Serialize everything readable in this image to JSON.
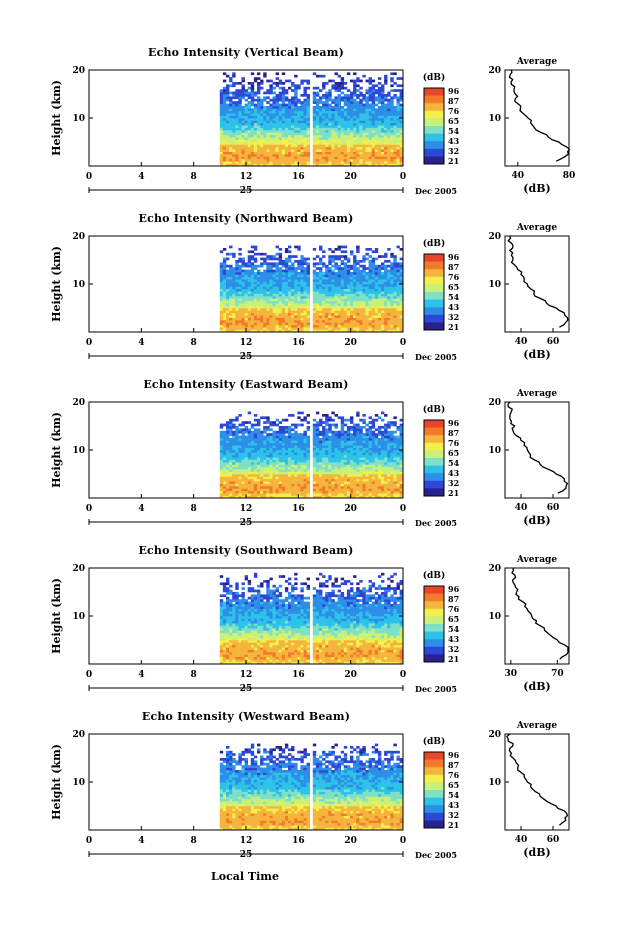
{
  "figure": {
    "xlabel": "Local Time",
    "day_label": "25",
    "date_label": "Dec 2005",
    "ylabel": "Height (km)",
    "unit_label": "(dB)",
    "avg_title": "Average",
    "avg_xlabel": "(dB)"
  },
  "colorscale": {
    "ticks": [
      "96",
      "87",
      "76",
      "65",
      "54",
      "43",
      "32",
      "21"
    ],
    "colors": [
      "#28238c",
      "#2d47d6",
      "#2d8ee8",
      "#2dc3e8",
      "#7fe0c8",
      "#c8f07a",
      "#f2f04a",
      "#f5b43c",
      "#f27a2a",
      "#e8462a"
    ]
  },
  "chart_data": [
    {
      "type": "heatmap",
      "title": "Echo Intensity (Vertical Beam)",
      "xlabel": "Local Time",
      "ylabel": "Height (km)",
      "xlim": [
        0,
        24
      ],
      "ylim": [
        0,
        20
      ],
      "x_ticks": [
        "0",
        "4",
        "8",
        "12",
        "16",
        "20",
        "0"
      ],
      "y_ticks": [
        "10",
        "20"
      ],
      "colorbar_label": "(dB)",
      "colorbar_ticks": [
        96,
        87,
        76,
        65,
        54,
        43,
        32,
        21
      ],
      "data_start_hour": 10,
      "gap_hour": 17,
      "top_height_km": 20,
      "average": {
        "title": "Average",
        "xlabel": "(dB)",
        "x_ticks": [
          "40",
          "80"
        ],
        "xlim": [
          30,
          80
        ],
        "ylim": [
          0,
          20
        ],
        "profile": [
          [
            1,
            70
          ],
          [
            2,
            77
          ],
          [
            3,
            79
          ],
          [
            4,
            78
          ],
          [
            5,
            72
          ],
          [
            6,
            64
          ],
          [
            7,
            58
          ],
          [
            8,
            53
          ],
          [
            9,
            50
          ],
          [
            10,
            48
          ],
          [
            11,
            44
          ],
          [
            12,
            42
          ],
          [
            13,
            40
          ],
          [
            14,
            38
          ],
          [
            15,
            38
          ],
          [
            16,
            37
          ],
          [
            17,
            35
          ],
          [
            18,
            36
          ],
          [
            19,
            34
          ],
          [
            20,
            35
          ]
        ]
      }
    },
    {
      "type": "heatmap",
      "title": "Echo Intensity (Northward Beam)",
      "xlabel": "Local Time",
      "ylabel": "Height (km)",
      "xlim": [
        0,
        24
      ],
      "ylim": [
        0,
        20
      ],
      "x_ticks": [
        "0",
        "4",
        "8",
        "12",
        "16",
        "20",
        "0"
      ],
      "y_ticks": [
        "10",
        "20"
      ],
      "colorbar_label": "(dB)",
      "colorbar_ticks": [
        96,
        87,
        76,
        65,
        54,
        43,
        32,
        21
      ],
      "data_start_hour": 10,
      "gap_hour": 17,
      "top_height_km": 18,
      "average": {
        "title": "Average",
        "xlabel": "(dB)",
        "x_ticks": [
          "40",
          "60"
        ],
        "xlim": [
          30,
          70
        ],
        "ylim": [
          0,
          20
        ],
        "profile": [
          [
            1,
            64
          ],
          [
            2,
            68
          ],
          [
            3,
            69
          ],
          [
            4,
            67
          ],
          [
            5,
            62
          ],
          [
            6,
            56
          ],
          [
            7,
            52
          ],
          [
            8,
            48
          ],
          [
            9,
            46
          ],
          [
            10,
            44
          ],
          [
            11,
            42
          ],
          [
            12,
            40
          ],
          [
            13,
            38
          ],
          [
            14,
            36
          ],
          [
            15,
            35
          ],
          [
            16,
            34
          ],
          [
            17,
            33
          ],
          [
            18,
            35
          ],
          [
            19,
            32
          ],
          [
            20,
            33
          ]
        ]
      }
    },
    {
      "type": "heatmap",
      "title": "Echo Intensity (Eastward Beam)",
      "xlabel": "Local Time",
      "ylabel": "Height (km)",
      "xlim": [
        0,
        24
      ],
      "ylim": [
        0,
        20
      ],
      "x_ticks": [
        "0",
        "4",
        "8",
        "12",
        "16",
        "20",
        "0"
      ],
      "y_ticks": [
        "10",
        "20"
      ],
      "colorbar_label": "(dB)",
      "colorbar_ticks": [
        96,
        87,
        76,
        65,
        54,
        43,
        32,
        21
      ],
      "data_start_hour": 10,
      "gap_hour": 17,
      "top_height_km": 18,
      "average": {
        "title": "Average",
        "xlabel": "(dB)",
        "x_ticks": [
          "40",
          "60"
        ],
        "xlim": [
          30,
          70
        ],
        "ylim": [
          0,
          20
        ],
        "profile": [
          [
            1,
            63
          ],
          [
            2,
            68
          ],
          [
            3,
            69
          ],
          [
            4,
            67
          ],
          [
            5,
            62
          ],
          [
            6,
            57
          ],
          [
            7,
            52
          ],
          [
            8,
            48
          ],
          [
            9,
            46
          ],
          [
            10,
            44
          ],
          [
            11,
            42
          ],
          [
            12,
            40
          ],
          [
            13,
            37
          ],
          [
            14,
            35
          ],
          [
            15,
            36
          ],
          [
            16,
            34
          ],
          [
            17,
            33
          ],
          [
            18,
            34
          ],
          [
            19,
            32
          ],
          [
            20,
            33
          ]
        ]
      }
    },
    {
      "type": "heatmap",
      "title": "Echo Intensity (Southward Beam)",
      "xlabel": "Local Time",
      "ylabel": "Height (km)",
      "xlim": [
        0,
        24
      ],
      "ylim": [
        0,
        20
      ],
      "x_ticks": [
        "0",
        "4",
        "8",
        "12",
        "16",
        "20",
        "0"
      ],
      "y_ticks": [
        "10",
        "20"
      ],
      "colorbar_label": "(dB)",
      "colorbar_ticks": [
        96,
        87,
        76,
        65,
        54,
        43,
        32,
        21
      ],
      "data_start_hour": 10,
      "gap_hour": 17,
      "top_height_km": 19,
      "average": {
        "title": "Average",
        "xlabel": "(dB)",
        "x_ticks": [
          "30",
          "70"
        ],
        "xlim": [
          25,
          80
        ],
        "ylim": [
          0,
          20
        ],
        "profile": [
          [
            1,
            72
          ],
          [
            2,
            78
          ],
          [
            3,
            79
          ],
          [
            4,
            76
          ],
          [
            5,
            70
          ],
          [
            6,
            64
          ],
          [
            7,
            59
          ],
          [
            8,
            55
          ],
          [
            9,
            52
          ],
          [
            10,
            48
          ],
          [
            11,
            45
          ],
          [
            12,
            42
          ],
          [
            13,
            40
          ],
          [
            14,
            37
          ],
          [
            15,
            35
          ],
          [
            16,
            34
          ],
          [
            17,
            32
          ],
          [
            18,
            34
          ],
          [
            19,
            31
          ],
          [
            20,
            32
          ]
        ]
      }
    },
    {
      "type": "heatmap",
      "title": "Echo Intensity (Westward Beam)",
      "xlabel": "Local Time",
      "ylabel": "Height (km)",
      "xlim": [
        0,
        24
      ],
      "ylim": [
        0,
        20
      ],
      "x_ticks": [
        "0",
        "4",
        "8",
        "12",
        "16",
        "20",
        "0"
      ],
      "y_ticks": [
        "10",
        "20"
      ],
      "colorbar_label": "(dB)",
      "colorbar_ticks": [
        96,
        87,
        76,
        65,
        54,
        43,
        32,
        21
      ],
      "data_start_hour": 10,
      "gap_hour": 17,
      "top_height_km": 18,
      "average": {
        "title": "Average",
        "xlabel": "(dB)",
        "x_ticks": [
          "40",
          "60"
        ],
        "xlim": [
          30,
          70
        ],
        "ylim": [
          0,
          20
        ],
        "profile": [
          [
            1,
            64
          ],
          [
            2,
            68
          ],
          [
            3,
            69
          ],
          [
            4,
            67
          ],
          [
            5,
            62
          ],
          [
            6,
            56
          ],
          [
            7,
            52
          ],
          [
            8,
            49
          ],
          [
            9,
            46
          ],
          [
            10,
            44
          ],
          [
            11,
            42
          ],
          [
            12,
            40
          ],
          [
            13,
            38
          ],
          [
            14,
            37
          ],
          [
            15,
            35
          ],
          [
            16,
            34
          ],
          [
            17,
            33
          ],
          [
            18,
            35
          ],
          [
            19,
            32
          ],
          [
            20,
            33
          ]
        ]
      }
    }
  ]
}
